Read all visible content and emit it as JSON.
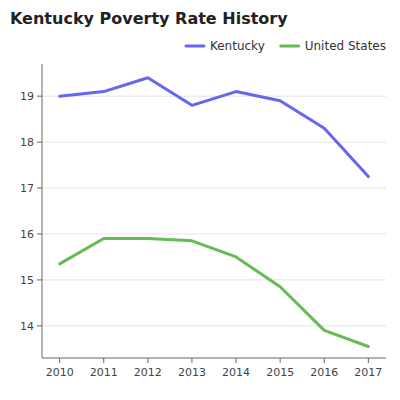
{
  "chart_data": {
    "type": "line",
    "title": "Kentucky Poverty Rate History",
    "x": [
      2010,
      2011,
      2012,
      2013,
      2014,
      2015,
      2016,
      2017
    ],
    "series": [
      {
        "name": "Kentucky",
        "color": "#6666ee",
        "values": [
          19.0,
          19.1,
          19.4,
          18.8,
          19.1,
          18.9,
          18.3,
          17.25
        ]
      },
      {
        "name": "United States",
        "color": "#66bb55",
        "values": [
          15.35,
          15.9,
          15.9,
          15.85,
          15.5,
          14.85,
          13.9,
          13.55
        ]
      }
    ],
    "xlim": [
      2009.6,
      2017.4
    ],
    "xticks": [
      2010,
      2011,
      2012,
      2013,
      2014,
      2015,
      2016,
      2017
    ],
    "ylim": [
      13.3,
      19.7
    ],
    "yticks": [
      14,
      15,
      16,
      17,
      18,
      19
    ],
    "grid": true,
    "legend": "upper right"
  }
}
